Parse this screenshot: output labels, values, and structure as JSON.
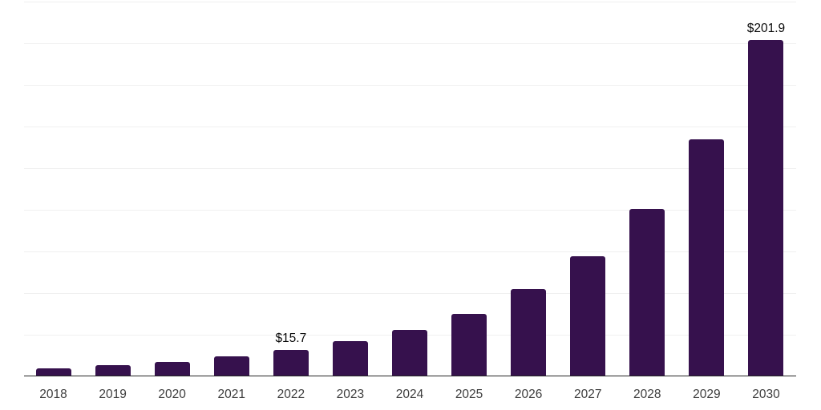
{
  "chart_data": {
    "type": "bar",
    "title": "",
    "xlabel": "",
    "ylabel": "",
    "categories": [
      "2018",
      "2019",
      "2020",
      "2021",
      "2022",
      "2023",
      "2024",
      "2025",
      "2026",
      "2027",
      "2028",
      "2029",
      "2030"
    ],
    "values": [
      4.6,
      6.3,
      8.2,
      11.6,
      15.7,
      20.7,
      27.7,
      37.3,
      52.0,
      71.7,
      100.3,
      142.1,
      201.9
    ],
    "data_labels": [
      "",
      "",
      "",
      "",
      "$15.7",
      "",
      "",
      "",
      "",
      "",
      "",
      "",
      "$201.9"
    ],
    "ylim": [
      0,
      225
    ],
    "gridline_step": 25,
    "grid": "horizontal",
    "legend_position": "none",
    "y_axis_tick_labels_visible": false
  },
  "style": {
    "background_color": "#ffffff",
    "bar_color": "#36114d",
    "axis_line_color": "#262626",
    "gridline_color": "#f0f0f0",
    "tick_label_color": "#3d3d3d",
    "data_label_color": "#0a0a0a"
  }
}
